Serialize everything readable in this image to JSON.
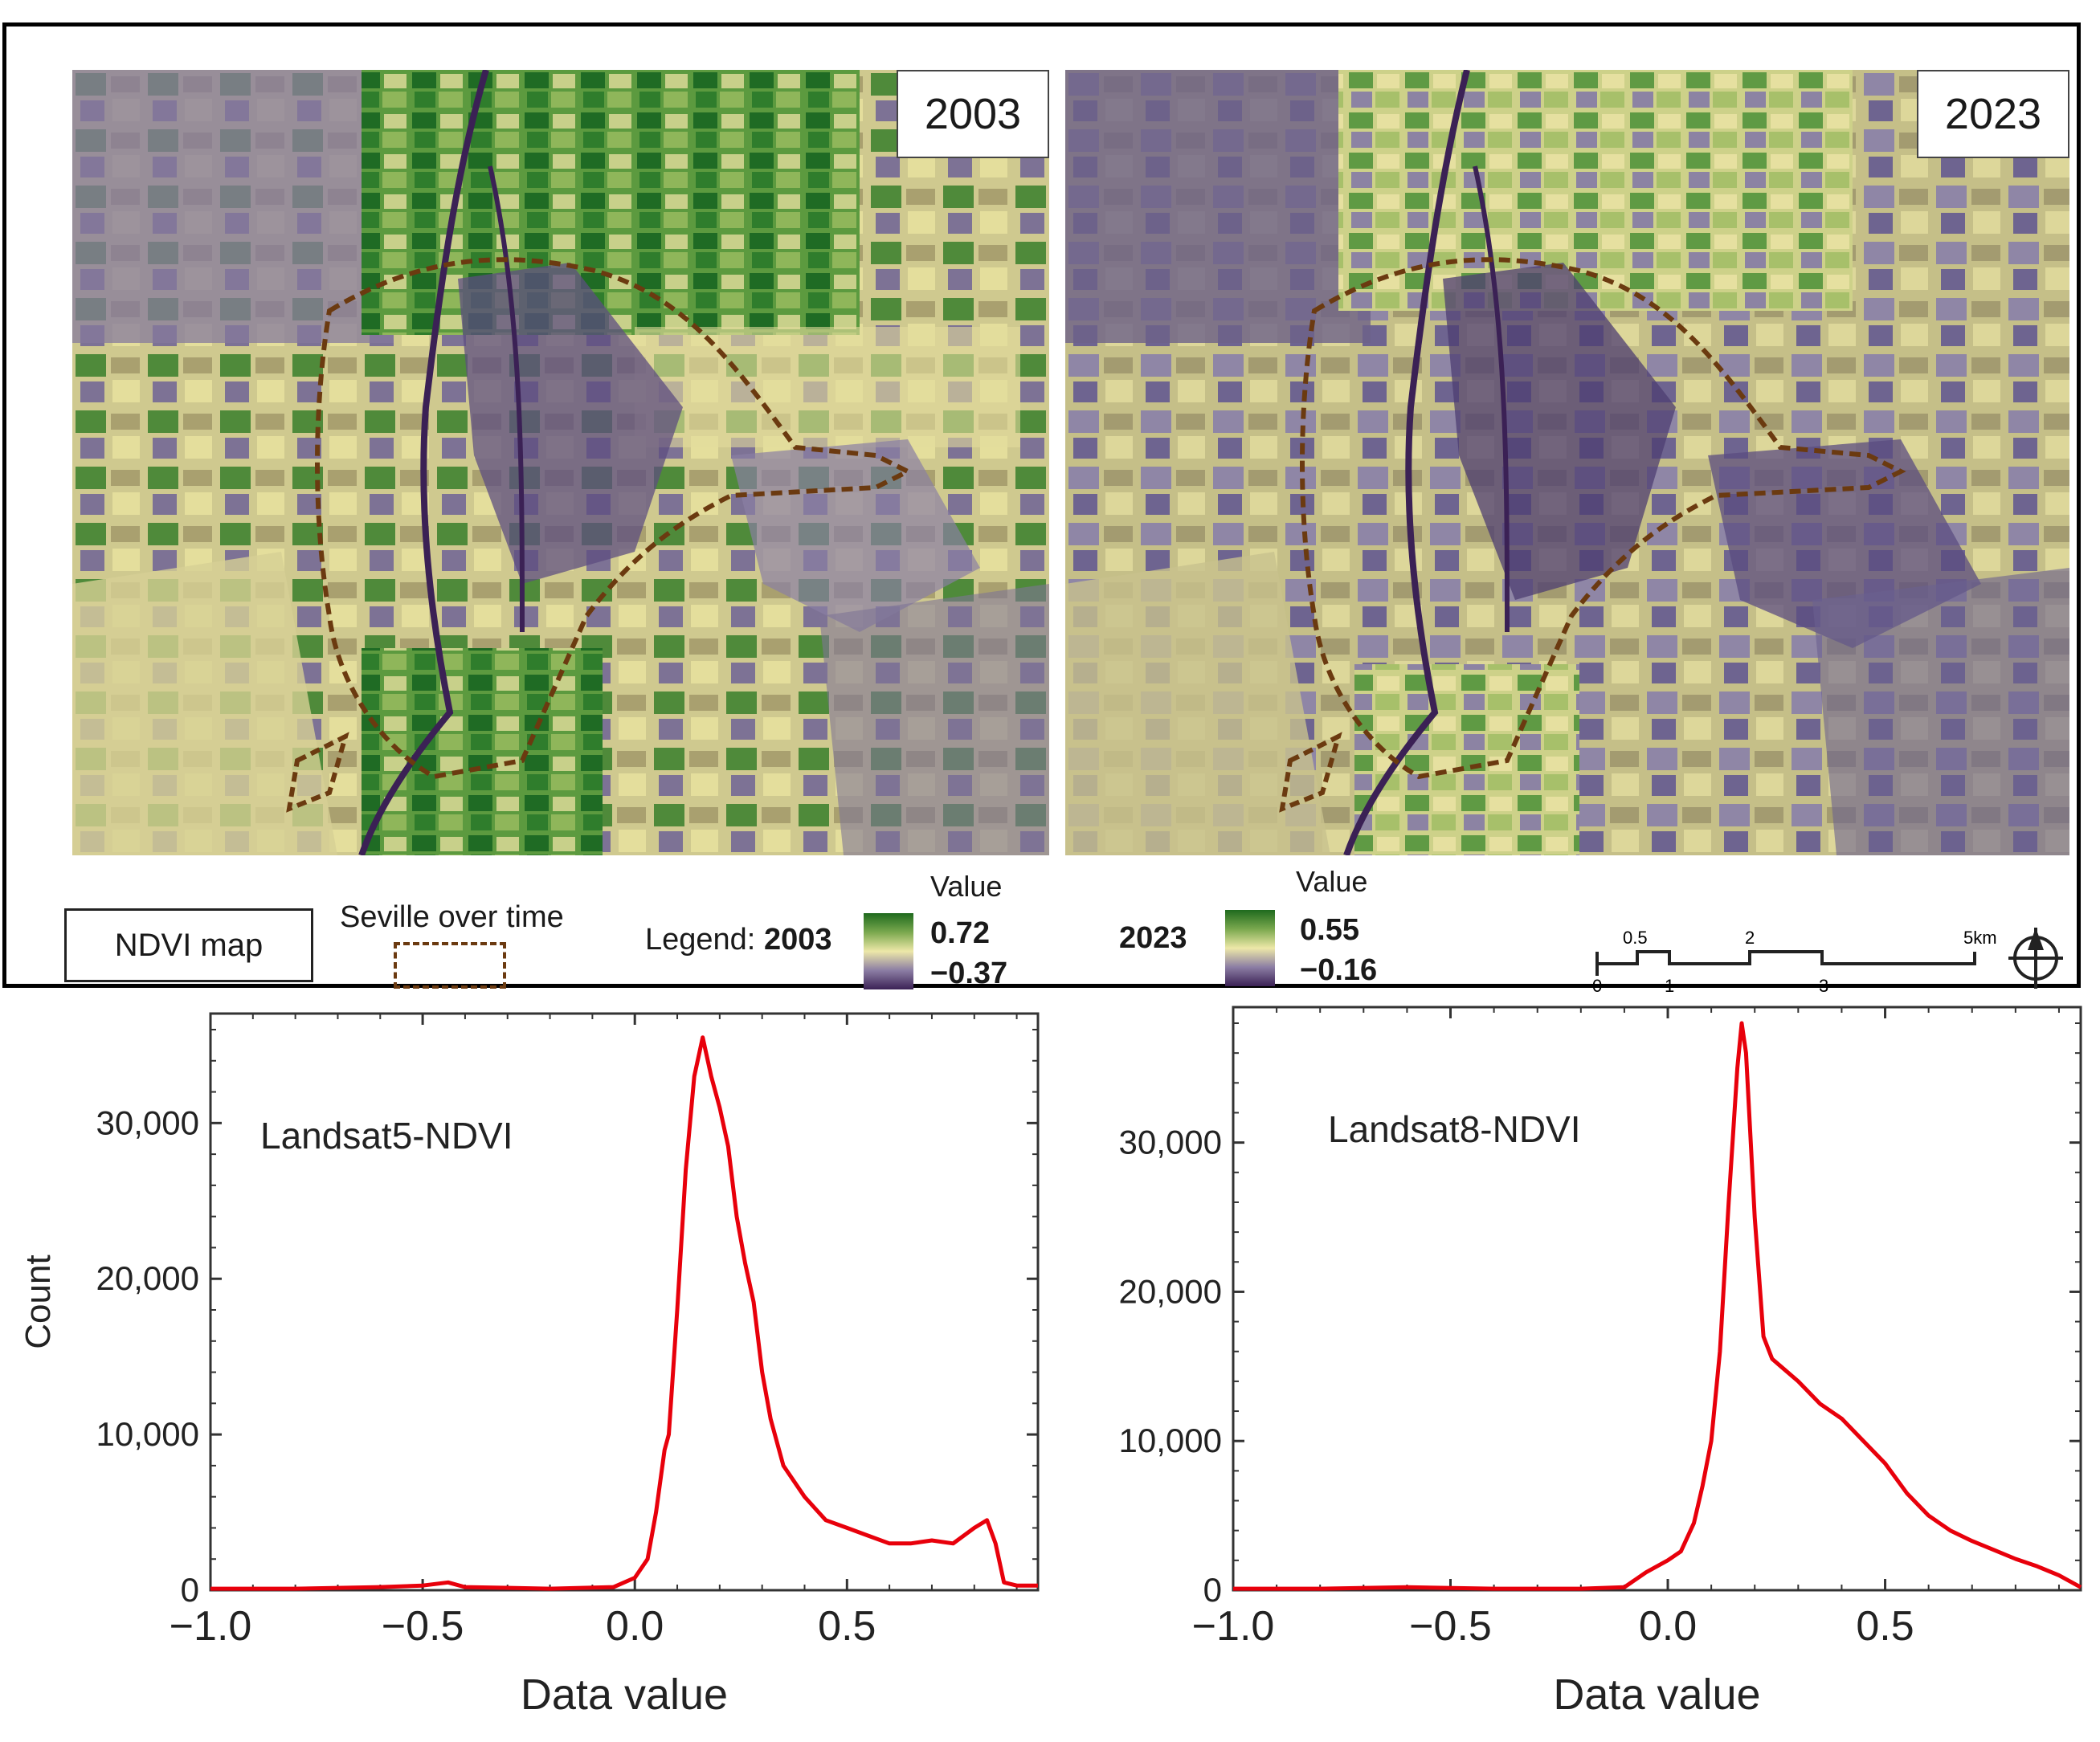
{
  "maps": {
    "panels": [
      {
        "year": "2003"
      },
      {
        "year": "2023"
      }
    ],
    "title": "NDVI map",
    "boundary_label": "Seville over time",
    "legend": {
      "prefix": "Legend:",
      "items": [
        {
          "year": "2003",
          "value_label": "Value",
          "max": "0.72",
          "min": "−0.37"
        },
        {
          "year": "2023",
          "value_label": "Value",
          "max": "0.55",
          "min": "−0.16"
        }
      ]
    },
    "scale_bar": {
      "top_labels": [
        "0.5",
        "2",
        "5km"
      ],
      "bottom_labels": [
        "0",
        "1",
        "3"
      ]
    },
    "colors": {
      "ramp_high": "#1e6a1e",
      "ramp_mid": "#ede8a8",
      "ramp_low": "#3b2155",
      "boundary": "#6b3a10"
    }
  },
  "chart_data": [
    {
      "type": "line",
      "annotation": "Landsat5-NDVI",
      "xlabel": "Data value",
      "ylabel": "Count",
      "xlim": [
        -1.0,
        0.95
      ],
      "ylim": [
        0,
        36000
      ],
      "xticks": [
        "−1.0",
        "−0.5",
        "0.0",
        "0.5"
      ],
      "xtick_values": [
        -1.0,
        -0.5,
        0.0,
        0.5
      ],
      "yticks": [
        "0",
        "10,000",
        "20,000",
        "30,000"
      ],
      "ytick_values": [
        0,
        10000,
        20000,
        30000
      ],
      "grid": false,
      "color": "#e8000b",
      "series": [
        {
          "x": [
            -1.0,
            -0.8,
            -0.6,
            -0.5,
            -0.44,
            -0.4,
            -0.2,
            -0.05,
            0.0,
            0.03,
            0.05,
            0.07,
            0.08,
            0.1,
            0.12,
            0.14,
            0.16,
            0.18,
            0.2,
            0.22,
            0.24,
            0.26,
            0.28,
            0.3,
            0.32,
            0.35,
            0.4,
            0.45,
            0.5,
            0.55,
            0.6,
            0.65,
            0.7,
            0.75,
            0.8,
            0.83,
            0.85,
            0.87,
            0.9,
            0.95
          ],
          "y": [
            100,
            100,
            200,
            300,
            500,
            200,
            100,
            200,
            800,
            2000,
            5000,
            9000,
            10000,
            18000,
            27000,
            33000,
            35500,
            33000,
            31000,
            28500,
            24000,
            21000,
            18500,
            14000,
            11000,
            8000,
            6000,
            4500,
            4000,
            3500,
            3000,
            3000,
            3200,
            3000,
            4000,
            4500,
            3000,
            500,
            300,
            300
          ]
        }
      ]
    },
    {
      "type": "line",
      "annotation": "Landsat8-NDVI",
      "xlabel": "Data value",
      "ylabel": "",
      "xlim": [
        -1.0,
        0.95
      ],
      "ylim": [
        0,
        38000
      ],
      "xticks": [
        "−1.0",
        "−0.5",
        "0.0",
        "0.5"
      ],
      "xtick_values": [
        -1.0,
        -0.5,
        0.0,
        0.5
      ],
      "yticks": [
        "0",
        "10,000",
        "20,000",
        "30,000"
      ],
      "ytick_values": [
        0,
        10000,
        20000,
        30000
      ],
      "grid": false,
      "color": "#e8000b",
      "series": [
        {
          "x": [
            -1.0,
            -0.8,
            -0.6,
            -0.4,
            -0.2,
            -0.1,
            -0.05,
            0.0,
            0.03,
            0.06,
            0.08,
            0.1,
            0.12,
            0.14,
            0.16,
            0.17,
            0.18,
            0.2,
            0.22,
            0.24,
            0.26,
            0.3,
            0.35,
            0.4,
            0.45,
            0.5,
            0.55,
            0.6,
            0.65,
            0.7,
            0.75,
            0.8,
            0.85,
            0.9,
            0.95
          ],
          "y": [
            100,
            100,
            200,
            100,
            100,
            200,
            1200,
            2000,
            2600,
            4500,
            7000,
            10000,
            16000,
            26000,
            35000,
            38000,
            36000,
            25000,
            17000,
            15500,
            15000,
            14000,
            12500,
            11500,
            10000,
            8500,
            6500,
            5000,
            4000,
            3300,
            2700,
            2100,
            1600,
            1000,
            200
          ]
        }
      ]
    }
  ]
}
